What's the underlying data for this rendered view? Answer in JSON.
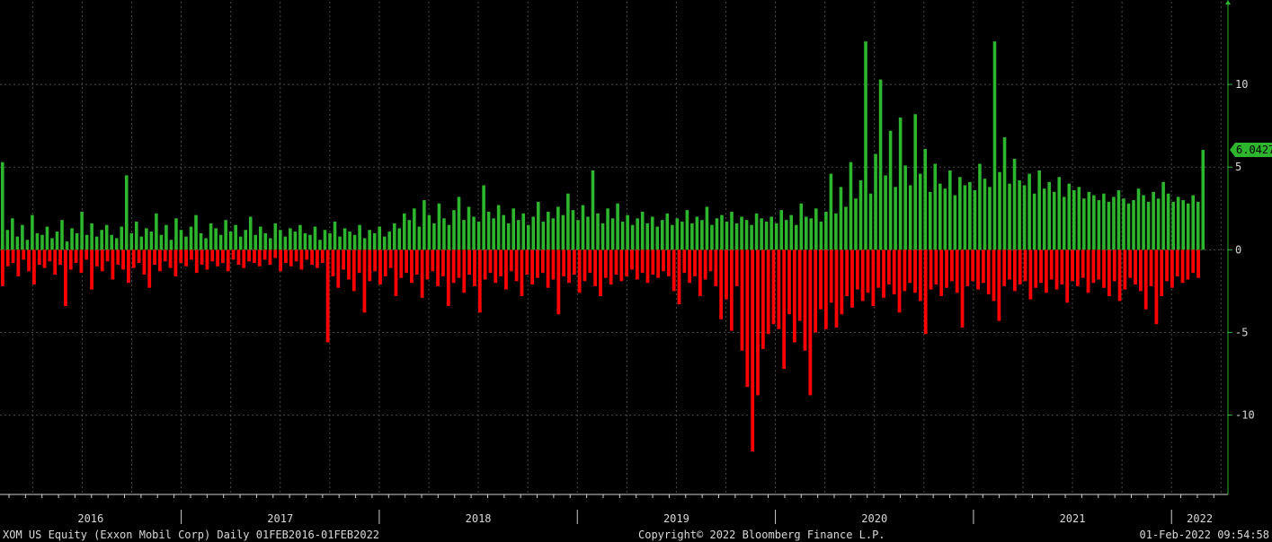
{
  "footer": {
    "left": "XOM US Equity (Exxon Mobil Corp)  Daily 01FEB2016-01FEB2022",
    "center": "Copyright© 2022 Bloomberg Finance L.P.",
    "right": "01-Feb-2022 09:54:58"
  },
  "colors": {
    "positive": "#2db52d",
    "negative": "#ff0000",
    "axis": "#2db52d",
    "grid": "#4a4a4a",
    "background": "#000000"
  },
  "chart_data": {
    "type": "bar",
    "frequency": "Daily",
    "range": [
      "2016-02-01",
      "2022-02-01"
    ],
    "ylim": [
      -14.8,
      15
    ],
    "yticks": [
      -10,
      -5,
      0,
      5,
      10
    ],
    "ytick_labels": [
      "-10",
      "-5",
      "0",
      "5",
      "10"
    ],
    "xtick_labels": [
      "2016",
      "2017",
      "2018",
      "2019",
      "2020",
      "2021",
      "2022"
    ],
    "last_value": 6.0427,
    "last_value_label": "6.0427",
    "grid": true,
    "series": [
      {
        "name": "positive",
        "values": [
          5.3,
          1.2,
          1.9,
          0.8,
          1.5,
          0.6,
          2.1,
          1.0,
          0.9,
          1.4,
          0.7,
          1.1,
          1.8,
          0.5,
          1.3,
          1.0,
          2.3,
          0.9,
          1.6,
          0.8,
          1.2,
          1.5,
          0.9,
          0.7,
          1.4,
          4.5,
          1.0,
          1.7,
          0.8,
          1.3,
          1.1,
          2.2,
          0.9,
          1.5,
          0.6,
          1.9,
          1.2,
          0.8,
          1.4,
          2.1,
          1.0,
          0.7,
          1.6,
          1.3,
          0.9,
          1.8,
          1.1,
          1.5,
          0.8,
          1.2,
          2.0,
          0.9,
          1.4,
          1.0,
          0.7,
          1.6,
          1.2,
          0.8,
          1.3,
          1.1,
          1.5,
          1.0,
          0.9,
          1.4,
          0.6,
          1.2,
          1.0,
          1.7,
          0.8,
          1.3,
          1.1,
          0.9,
          1.5,
          0.7,
          1.2,
          1.0,
          1.4,
          0.8,
          1.1,
          1.6,
          1.3,
          2.2,
          1.8,
          2.5,
          1.4,
          3.0,
          2.1,
          1.6,
          2.8,
          1.9,
          1.5,
          2.4,
          3.2,
          1.8,
          2.6,
          2.0,
          1.7,
          3.9,
          2.3,
          1.9,
          2.7,
          2.1,
          1.6,
          2.5,
          1.8,
          2.2,
          1.5,
          2.0,
          2.9,
          1.7,
          2.3,
          1.9,
          2.6,
          2.1,
          3.4,
          2.4,
          1.8,
          2.7,
          2.0,
          4.8,
          2.2,
          1.6,
          2.5,
          1.9,
          2.8,
          1.7,
          2.1,
          1.5,
          1.9,
          2.3,
          1.6,
          2.0,
          1.4,
          1.8,
          2.2,
          1.5,
          1.9,
          1.7,
          2.4,
          1.6,
          2.0,
          1.8,
          2.6,
          1.5,
          1.9,
          2.1,
          1.7,
          2.3,
          1.6,
          2.0,
          1.8,
          1.5,
          2.2,
          1.9,
          1.7,
          2.0,
          1.6,
          2.4,
          1.8,
          2.1,
          1.5,
          2.8,
          2.0,
          1.9,
          2.5,
          1.7,
          2.3,
          4.6,
          2.2,
          3.8,
          2.6,
          5.3,
          3.1,
          4.2,
          12.6,
          3.4,
          5.8,
          10.3,
          4.5,
          7.2,
          3.8,
          8.0,
          5.1,
          3.9,
          8.2,
          4.6,
          6.1,
          3.5,
          5.2,
          4.0,
          3.7,
          4.8,
          3.3,
          4.4,
          3.9,
          4.1,
          3.6,
          5.2,
          4.3,
          3.8,
          12.6,
          4.7,
          6.8,
          4.0,
          5.5,
          4.2,
          3.9,
          4.6,
          3.4,
          4.8,
          3.7,
          4.1,
          3.5,
          4.4,
          3.2,
          4.0,
          3.6,
          3.8,
          3.1,
          3.5,
          3.3,
          3.0,
          3.4,
          2.9,
          3.2,
          3.6,
          3.1,
          2.8,
          3.0,
          3.7,
          3.3,
          2.9,
          3.5,
          3.1,
          4.1,
          3.4,
          2.9,
          3.2,
          3.0,
          2.8,
          3.3,
          2.9,
          6.04
        ]
      },
      {
        "name": "negative",
        "values": [
          -2.2,
          -1.0,
          -0.8,
          -1.6,
          -0.6,
          -1.3,
          -2.1,
          -0.9,
          -1.1,
          -0.7,
          -1.5,
          -0.9,
          -3.4,
          -1.2,
          -0.8,
          -1.4,
          -0.6,
          -2.4,
          -1.0,
          -1.3,
          -0.7,
          -1.8,
          -0.9,
          -1.2,
          -2.0,
          -1.1,
          -0.8,
          -1.5,
          -2.3,
          -0.9,
          -1.3,
          -0.7,
          -1.1,
          -1.6,
          -0.8,
          -1.0,
          -0.6,
          -1.4,
          -0.9,
          -1.2,
          -0.7,
          -1.0,
          -0.8,
          -1.3,
          -0.6,
          -0.9,
          -1.1,
          -0.7,
          -0.8,
          -1.0,
          -0.6,
          -0.9,
          -0.5,
          -1.3,
          -0.8,
          -1.0,
          -0.7,
          -1.2,
          -0.6,
          -0.9,
          -1.1,
          -0.8,
          -5.6,
          -1.6,
          -2.3,
          -1.2,
          -1.8,
          -2.5,
          -1.4,
          -3.8,
          -1.9,
          -1.3,
          -2.1,
          -1.6,
          -1.1,
          -2.8,
          -1.7,
          -1.4,
          -2.0,
          -1.5,
          -2.9,
          -1.8,
          -1.3,
          -2.2,
          -1.6,
          -3.4,
          -2.0,
          -1.7,
          -2.6,
          -1.5,
          -2.2,
          -3.8,
          -1.8,
          -1.4,
          -2.0,
          -1.6,
          -2.4,
          -1.3,
          -1.9,
          -2.8,
          -1.5,
          -2.1,
          -1.7,
          -1.4,
          -2.3,
          -1.8,
          -3.9,
          -1.6,
          -2.0,
          -1.5,
          -2.6,
          -1.9,
          -1.4,
          -2.2,
          -2.8,
          -1.7,
          -2.1,
          -1.5,
          -1.9,
          -1.6,
          -1.2,
          -1.8,
          -1.4,
          -2.0,
          -1.5,
          -1.7,
          -1.3,
          -1.6,
          -2.5,
          -3.3,
          -1.4,
          -2.0,
          -1.6,
          -2.8,
          -1.8,
          -1.3,
          -2.2,
          -4.2,
          -3.0,
          -4.9,
          -2.2,
          -6.1,
          -8.3,
          -12.2,
          -8.8,
          -6.0,
          -5.1,
          -4.5,
          -4.8,
          -7.2,
          -3.9,
          -5.6,
          -4.3,
          -6.1,
          -8.8,
          -5.0,
          -3.6,
          -4.8,
          -3.2,
          -4.7,
          -3.9,
          -2.8,
          -3.5,
          -2.4,
          -3.1,
          -2.6,
          -3.4,
          -2.3,
          -2.9,
          -2.1,
          -2.7,
          -3.8,
          -2.5,
          -2.0,
          -2.6,
          -3.1,
          -5.1,
          -2.4,
          -2.1,
          -2.8,
          -2.3,
          -1.9,
          -2.6,
          -4.7,
          -2.2,
          -1.9,
          -2.4,
          -2.0,
          -2.7,
          -3.1,
          -4.3,
          -2.2,
          -1.8,
          -2.5,
          -2.1,
          -1.9,
          -3.0,
          -2.3,
          -2.0,
          -2.6,
          -1.8,
          -2.4,
          -2.1,
          -3.2,
          -1.9,
          -2.2,
          -1.7,
          -2.6,
          -2.0,
          -1.8,
          -2.3,
          -2.8,
          -1.9,
          -3.1,
          -2.4,
          -1.7,
          -2.1,
          -2.5,
          -3.6,
          -2.2,
          -4.5,
          -2.8,
          -1.9,
          -2.3,
          -1.6,
          -2.0,
          -1.8,
          -1.4,
          -1.7
        ]
      }
    ]
  }
}
